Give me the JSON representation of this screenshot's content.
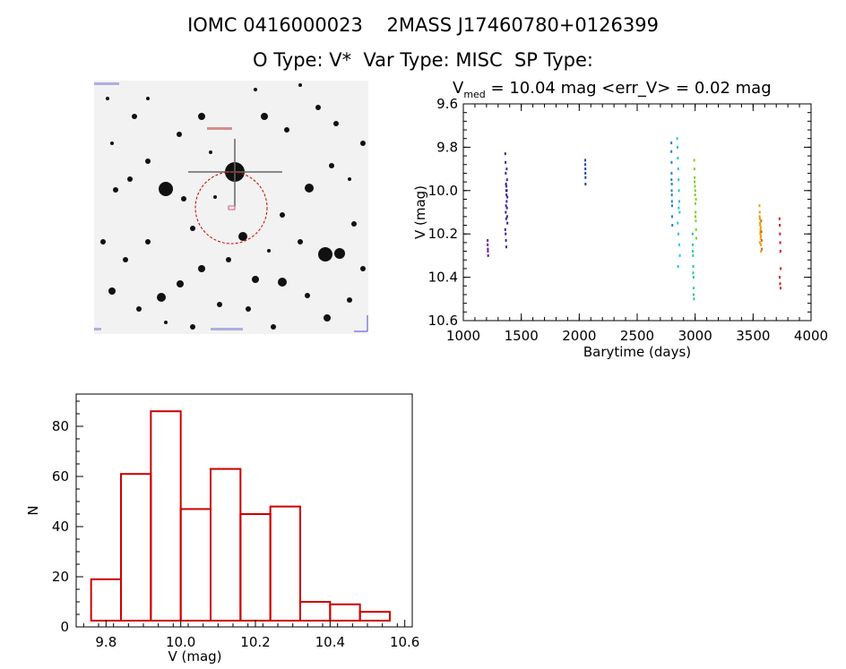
{
  "header": {
    "line1": "IOMC 0416000023    2MASS J17460780+0126399",
    "line2": "O Type: V*  Var Type: MISC  SP Type:"
  },
  "image_panel": {
    "description_icon": "star-field-image",
    "circle_color": "#cc0000",
    "marker_color": "#cc0000"
  },
  "chart_data": [
    {
      "type": "scatter",
      "title_parts": {
        "v": "V",
        "sub": "med",
        "rest": " = 10.04 mag <err_V> = 0.02 mag"
      },
      "xlabel": "Barytime (days)",
      "ylabel": "V (mag)",
      "xlim": [
        1000,
        4000
      ],
      "ylim": [
        10.6,
        9.6
      ],
      "x_ticks": [
        "1000",
        "1500",
        "2000",
        "2500",
        "3000",
        "3500",
        "4000"
      ],
      "y_ticks": [
        "9.6",
        "9.8",
        "10.0",
        "10.2",
        "10.4",
        "10.6"
      ],
      "series": [
        {
          "color": "#6a1b9a",
          "x": [
            1210,
            1210,
            1212,
            1212,
            1214
          ],
          "y": [
            10.23,
            10.25,
            10.27,
            10.28,
            10.3
          ]
        },
        {
          "color": "#3d1fa0",
          "x": [
            1362,
            1364,
            1366,
            1368,
            1370,
            1372,
            1374,
            1376,
            1378,
            1380,
            1362,
            1365,
            1368,
            1371,
            1374,
            1377,
            1380,
            1366,
            1370,
            1375,
            1372,
            1368
          ],
          "y": [
            9.83,
            9.87,
            9.92,
            9.97,
            10.0,
            10.02,
            10.05,
            10.08,
            10.12,
            10.15,
            10.18,
            10.2,
            10.23,
            10.26,
            9.9,
            9.95,
            10.03,
            10.1,
            10.13,
            10.0,
            9.98,
            10.07
          ]
        },
        {
          "color": "#1f3fa8",
          "x": [
            2052,
            2052,
            2053,
            2053,
            2054,
            2054
          ],
          "y": [
            9.86,
            9.88,
            9.9,
            9.92,
            9.94,
            9.97
          ]
        },
        {
          "color": "#1e7fd0",
          "x": [
            2795,
            2795,
            2797,
            2797,
            2799,
            2799,
            2801,
            2801,
            2803,
            2796,
            2798,
            2800
          ],
          "y": [
            9.78,
            9.82,
            9.87,
            9.92,
            9.97,
            10.02,
            10.07,
            10.12,
            10.16,
            9.95,
            10.0,
            10.05
          ]
        },
        {
          "color": "#22c4e0",
          "x": [
            2845,
            2848,
            2851,
            2854,
            2857,
            2860,
            2863,
            2866,
            2850,
            2856,
            2862,
            2868,
            2853,
            2859
          ],
          "y": [
            9.76,
            9.8,
            9.85,
            9.9,
            9.95,
            10.0,
            10.05,
            10.1,
            10.15,
            10.2,
            10.25,
            10.3,
            10.35,
            10.08
          ]
        },
        {
          "color": "#28c8a0",
          "x": [
            2978,
            2980,
            2982,
            2984,
            2986,
            2988,
            2990,
            2979,
            2983,
            2987
          ],
          "y": [
            10.2,
            10.25,
            10.3,
            10.35,
            10.4,
            10.45,
            10.5,
            10.28,
            10.38,
            10.48
          ]
        },
        {
          "color": "#76d22a",
          "x": [
            2992,
            2994,
            2996,
            2998,
            3000,
            3002,
            3004,
            3006,
            3008,
            3010,
            2995,
            3001,
            3007,
            3003
          ],
          "y": [
            9.86,
            9.9,
            9.94,
            9.98,
            10.02,
            10.06,
            10.1,
            10.14,
            10.18,
            10.22,
            9.96,
            10.0,
            10.04,
            10.12
          ]
        },
        {
          "color": "#e8a300",
          "x": [
            3555,
            3557,
            3559,
            3561,
            3563,
            3565,
            3567,
            3569,
            3556,
            3560,
            3564,
            3568,
            3558,
            3562,
            3566
          ],
          "y": [
            10.07,
            10.1,
            10.13,
            10.16,
            10.19,
            10.22,
            10.25,
            10.28,
            10.12,
            10.15,
            10.18,
            10.21,
            10.24,
            10.2,
            10.17
          ]
        },
        {
          "color": "#e06010",
          "x": [
            3570,
            3572,
            3574,
            3576
          ],
          "y": [
            10.14,
            10.19,
            10.23,
            10.27
          ]
        },
        {
          "color": "#d81818",
          "x": [
            3728,
            3730,
            3732,
            3734,
            3736,
            3738,
            3729,
            3733,
            3737
          ],
          "y": [
            10.13,
            10.16,
            10.2,
            10.24,
            10.28,
            10.36,
            10.4,
            10.43,
            10.45
          ]
        }
      ]
    },
    {
      "type": "bar",
      "xlabel": "V (mag)",
      "ylabel": "N",
      "xlim": [
        9.72,
        10.62
      ],
      "ylim": [
        0,
        90
      ],
      "x_ticks": [
        "9.8",
        "10.0",
        "10.2",
        "10.4",
        "10.6"
      ],
      "y_ticks": [
        "0",
        "20",
        "40",
        "60",
        "80"
      ],
      "bar_color": "#cc0000",
      "bins": [
        {
          "left": 9.76,
          "right": 9.84,
          "count": 19
        },
        {
          "left": 9.84,
          "right": 9.92,
          "count": 61
        },
        {
          "left": 9.92,
          "right": 10.0,
          "count": 86
        },
        {
          "left": 10.0,
          "right": 10.08,
          "count": 47
        },
        {
          "left": 10.08,
          "right": 10.16,
          "count": 63
        },
        {
          "left": 10.16,
          "right": 10.24,
          "count": 45
        },
        {
          "left": 10.24,
          "right": 10.32,
          "count": 48
        },
        {
          "left": 10.32,
          "right": 10.4,
          "count": 10
        },
        {
          "left": 10.4,
          "right": 10.48,
          "count": 9
        },
        {
          "left": 10.48,
          "right": 10.56,
          "count": 6
        }
      ]
    }
  ]
}
